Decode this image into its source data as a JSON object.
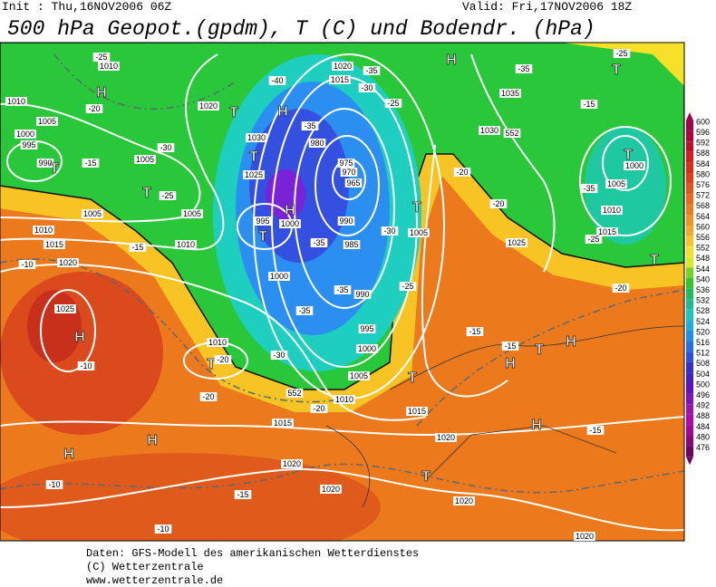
{
  "header": {
    "init": "Init : Thu,16NOV2006 06Z",
    "valid": "Valid: Fri,17NOV2006 18Z",
    "title": "500 hPa Geopot.(gpdm), T (C) und Bodendr. (hPa)"
  },
  "scale": {
    "labels": [
      600,
      596,
      592,
      588,
      584,
      580,
      576,
      572,
      568,
      564,
      560,
      556,
      552,
      548,
      544,
      540,
      536,
      532,
      528,
      524,
      520,
      516,
      512,
      508,
      504,
      500,
      496,
      492,
      488,
      484,
      480,
      476
    ]
  },
  "map_labels": [
    "H",
    "H",
    "T",
    "T",
    "H",
    1010,
    -25,
    1010,
    -20,
    1005,
    1000,
    995,
    990,
    "T",
    -15,
    1005,
    -30,
    "T",
    -25,
    1005,
    1005,
    1010,
    1015,
    -15,
    -10,
    1020,
    1010,
    995,
    "T",
    "H",
    1000,
    1000,
    1025,
    "H",
    -10,
    1010,
    "T",
    -20,
    -30,
    -20,
    1015,
    1020,
    "H",
    "H",
    -10,
    -15,
    -10,
    1020,
    1020,
    1015,
    1010,
    1005,
    1000,
    995,
    990,
    985,
    980,
    975,
    970,
    965,
    1020,
    1015,
    -40,
    -35,
    -30,
    -35,
    1025,
    "T",
    1030,
    1020,
    990,
    "T",
    1005,
    -30,
    -35,
    -35,
    -25,
    -35,
    "T",
    -20,
    1035,
    -35,
    -25,
    1030,
    552,
    -20,
    -20,
    1025,
    "T",
    1000,
    1005,
    -35,
    1010,
    1015,
    -25,
    "T",
    -20,
    "T",
    "H",
    "H",
    -15,
    -15,
    "H",
    -15,
    "T",
    1020,
    1020,
    552,
    -25,
    -15
  ],
  "footer": [
    "Daten: GFS-Modell des amerikanischen Wetterdienstes",
    "(C) Wetterzentrale",
    "www.wetterzentrale.de"
  ]
}
